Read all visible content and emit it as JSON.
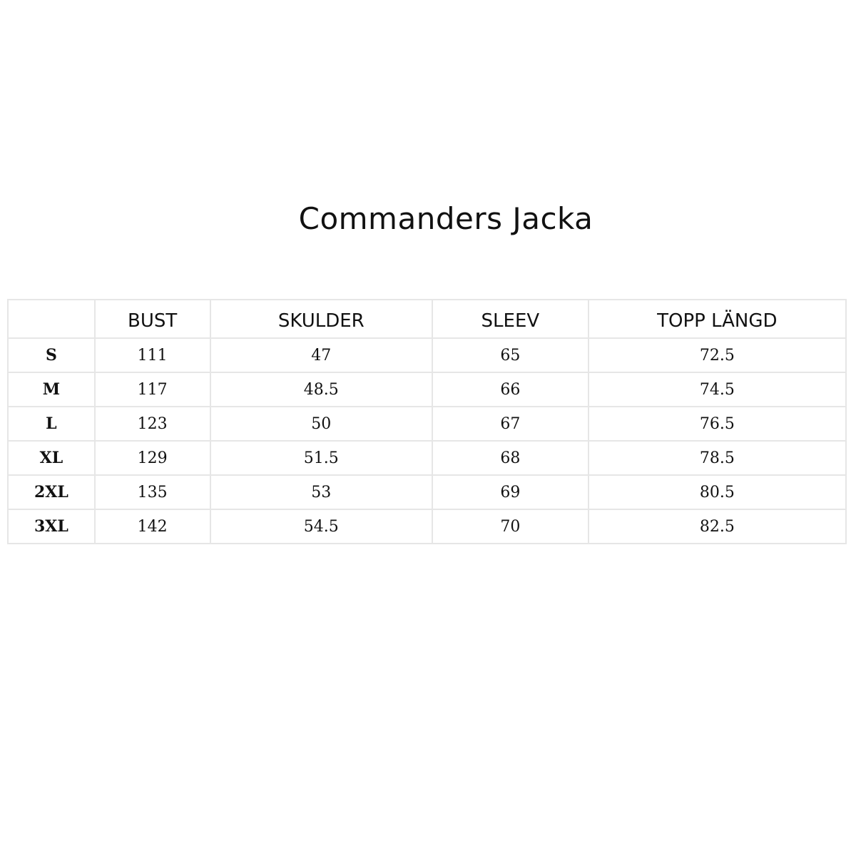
{
  "title": "Commanders Jacka",
  "table": {
    "headers": [
      "",
      "BUST",
      "SKULDER",
      "SLEEV",
      "TOPP LÄNGD"
    ],
    "rows": [
      [
        "S",
        "111",
        "47",
        "65",
        "72.5"
      ],
      [
        "M",
        "117",
        "48.5",
        "66",
        "74.5"
      ],
      [
        "L",
        "123",
        "50",
        "67",
        "76.5"
      ],
      [
        "XL",
        "129",
        "51.5",
        "68",
        "78.5"
      ],
      [
        "2XL",
        "135",
        "53",
        "69",
        "80.5"
      ],
      [
        "3XL",
        "142",
        "54.5",
        "70",
        "82.5"
      ]
    ]
  }
}
